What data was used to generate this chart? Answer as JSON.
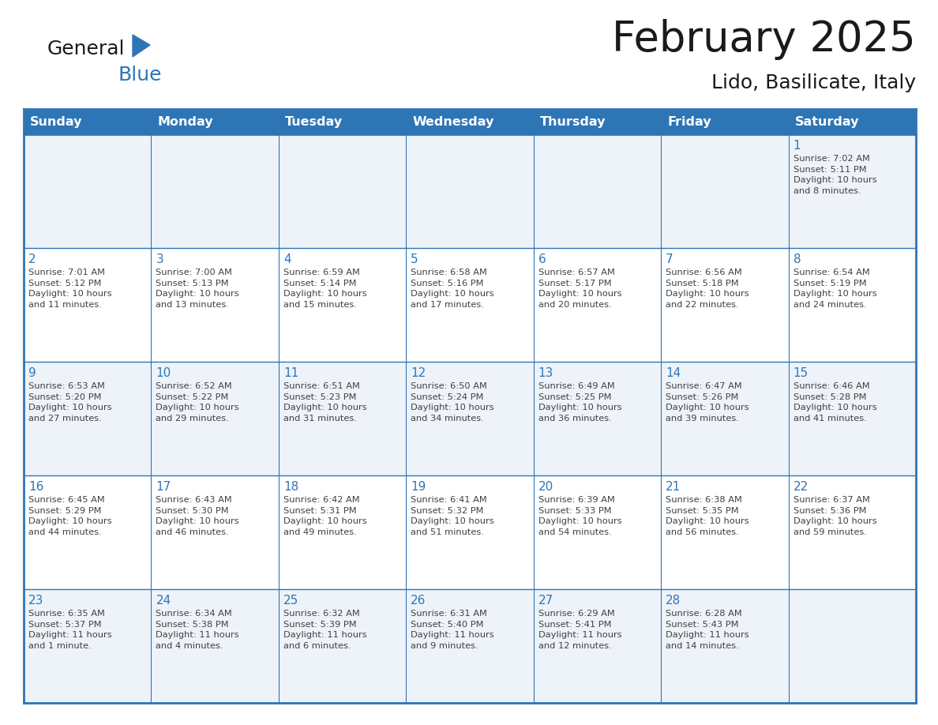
{
  "title": "February 2025",
  "subtitle": "Lido, Basilicate, Italy",
  "header_bg": "#2E75B6",
  "header_text_color": "#FFFFFF",
  "grid_line_color": "#2E75B6",
  "day_headers": [
    "Sunday",
    "Monday",
    "Tuesday",
    "Wednesday",
    "Thursday",
    "Friday",
    "Saturday"
  ],
  "background_color": "#FFFFFF",
  "title_color": "#1a1a1a",
  "subtitle_color": "#1a1a1a",
  "day_num_color": "#2E75B6",
  "cell_text_color": "#404040",
  "cell_alt_color": "#EEF3F9",
  "logo_general_color": "#1a1a1a",
  "logo_blue_color": "#2E75B6",
  "weeks": [
    [
      {
        "day": null,
        "info": null
      },
      {
        "day": null,
        "info": null
      },
      {
        "day": null,
        "info": null
      },
      {
        "day": null,
        "info": null
      },
      {
        "day": null,
        "info": null
      },
      {
        "day": null,
        "info": null
      },
      {
        "day": 1,
        "info": "Sunrise: 7:02 AM\nSunset: 5:11 PM\nDaylight: 10 hours\nand 8 minutes."
      }
    ],
    [
      {
        "day": 2,
        "info": "Sunrise: 7:01 AM\nSunset: 5:12 PM\nDaylight: 10 hours\nand 11 minutes."
      },
      {
        "day": 3,
        "info": "Sunrise: 7:00 AM\nSunset: 5:13 PM\nDaylight: 10 hours\nand 13 minutes."
      },
      {
        "day": 4,
        "info": "Sunrise: 6:59 AM\nSunset: 5:14 PM\nDaylight: 10 hours\nand 15 minutes."
      },
      {
        "day": 5,
        "info": "Sunrise: 6:58 AM\nSunset: 5:16 PM\nDaylight: 10 hours\nand 17 minutes."
      },
      {
        "day": 6,
        "info": "Sunrise: 6:57 AM\nSunset: 5:17 PM\nDaylight: 10 hours\nand 20 minutes."
      },
      {
        "day": 7,
        "info": "Sunrise: 6:56 AM\nSunset: 5:18 PM\nDaylight: 10 hours\nand 22 minutes."
      },
      {
        "day": 8,
        "info": "Sunrise: 6:54 AM\nSunset: 5:19 PM\nDaylight: 10 hours\nand 24 minutes."
      }
    ],
    [
      {
        "day": 9,
        "info": "Sunrise: 6:53 AM\nSunset: 5:20 PM\nDaylight: 10 hours\nand 27 minutes."
      },
      {
        "day": 10,
        "info": "Sunrise: 6:52 AM\nSunset: 5:22 PM\nDaylight: 10 hours\nand 29 minutes."
      },
      {
        "day": 11,
        "info": "Sunrise: 6:51 AM\nSunset: 5:23 PM\nDaylight: 10 hours\nand 31 minutes."
      },
      {
        "day": 12,
        "info": "Sunrise: 6:50 AM\nSunset: 5:24 PM\nDaylight: 10 hours\nand 34 minutes."
      },
      {
        "day": 13,
        "info": "Sunrise: 6:49 AM\nSunset: 5:25 PM\nDaylight: 10 hours\nand 36 minutes."
      },
      {
        "day": 14,
        "info": "Sunrise: 6:47 AM\nSunset: 5:26 PM\nDaylight: 10 hours\nand 39 minutes."
      },
      {
        "day": 15,
        "info": "Sunrise: 6:46 AM\nSunset: 5:28 PM\nDaylight: 10 hours\nand 41 minutes."
      }
    ],
    [
      {
        "day": 16,
        "info": "Sunrise: 6:45 AM\nSunset: 5:29 PM\nDaylight: 10 hours\nand 44 minutes."
      },
      {
        "day": 17,
        "info": "Sunrise: 6:43 AM\nSunset: 5:30 PM\nDaylight: 10 hours\nand 46 minutes."
      },
      {
        "day": 18,
        "info": "Sunrise: 6:42 AM\nSunset: 5:31 PM\nDaylight: 10 hours\nand 49 minutes."
      },
      {
        "day": 19,
        "info": "Sunrise: 6:41 AM\nSunset: 5:32 PM\nDaylight: 10 hours\nand 51 minutes."
      },
      {
        "day": 20,
        "info": "Sunrise: 6:39 AM\nSunset: 5:33 PM\nDaylight: 10 hours\nand 54 minutes."
      },
      {
        "day": 21,
        "info": "Sunrise: 6:38 AM\nSunset: 5:35 PM\nDaylight: 10 hours\nand 56 minutes."
      },
      {
        "day": 22,
        "info": "Sunrise: 6:37 AM\nSunset: 5:36 PM\nDaylight: 10 hours\nand 59 minutes."
      }
    ],
    [
      {
        "day": 23,
        "info": "Sunrise: 6:35 AM\nSunset: 5:37 PM\nDaylight: 11 hours\nand 1 minute."
      },
      {
        "day": 24,
        "info": "Sunrise: 6:34 AM\nSunset: 5:38 PM\nDaylight: 11 hours\nand 4 minutes."
      },
      {
        "day": 25,
        "info": "Sunrise: 6:32 AM\nSunset: 5:39 PM\nDaylight: 11 hours\nand 6 minutes."
      },
      {
        "day": 26,
        "info": "Sunrise: 6:31 AM\nSunset: 5:40 PM\nDaylight: 11 hours\nand 9 minutes."
      },
      {
        "day": 27,
        "info": "Sunrise: 6:29 AM\nSunset: 5:41 PM\nDaylight: 11 hours\nand 12 minutes."
      },
      {
        "day": 28,
        "info": "Sunrise: 6:28 AM\nSunset: 5:43 PM\nDaylight: 11 hours\nand 14 minutes."
      },
      {
        "day": null,
        "info": null
      }
    ]
  ]
}
